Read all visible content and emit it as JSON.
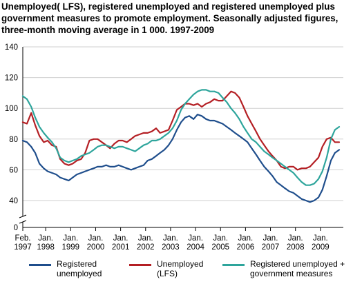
{
  "title_line1": "Unemployed( LFS), registered unemployed and registered unemployed plus",
  "title_line2": "government measures to promote employment. Seasonally adjusted figures,",
  "title_line3": "three-month moving average in 1 000. 1997-2009",
  "chart_data": {
    "type": "line",
    "ylim": [
      0,
      140
    ],
    "y_break": [
      0,
      30
    ],
    "yticks": [
      0,
      40,
      60,
      80,
      100,
      120,
      140
    ],
    "xlim": [
      1997.0833,
      2009.9167
    ],
    "xticks": [
      {
        "x": 1997.0833,
        "line1": "Feb.",
        "line2": "1997"
      },
      {
        "x": 1998.0,
        "line1": "Jan.",
        "line2": "1998"
      },
      {
        "x": 1999.0,
        "line1": "Jan.",
        "line2": "1999"
      },
      {
        "x": 2000.0,
        "line1": "Jan.",
        "line2": "2000"
      },
      {
        "x": 2001.0,
        "line1": "Jan.",
        "line2": "2001"
      },
      {
        "x": 2002.0,
        "line1": "Jan.",
        "line2": "2002"
      },
      {
        "x": 2003.0,
        "line1": "Jan.",
        "line2": "2003"
      },
      {
        "x": 2004.0,
        "line1": "Jan.",
        "line2": "2004"
      },
      {
        "x": 2005.0,
        "line1": "Jan.",
        "line2": "2005"
      },
      {
        "x": 2006.0,
        "line1": "Jan.",
        "line2": "2006"
      },
      {
        "x": 2007.0,
        "line1": "Jan.",
        "line2": "2007"
      },
      {
        "x": 2008.0,
        "line1": "Jan.",
        "line2": "2008"
      },
      {
        "x": 2009.0,
        "line1": "Jan.",
        "line2": "2009"
      }
    ],
    "grid": true,
    "legend_position": "bottom",
    "series": [
      {
        "name": "Registered unemployed",
        "color": "#1f4e8c",
        "x": [
          1997.08,
          1997.25,
          1997.42,
          1997.58,
          1997.75,
          1997.92,
          1998.08,
          1998.25,
          1998.42,
          1998.58,
          1998.75,
          1998.92,
          1999.08,
          1999.25,
          1999.42,
          1999.58,
          1999.75,
          1999.92,
          2000.08,
          2000.25,
          2000.42,
          2000.58,
          2000.75,
          2000.92,
          2001.08,
          2001.25,
          2001.42,
          2001.58,
          2001.75,
          2001.92,
          2002.08,
          2002.25,
          2002.42,
          2002.58,
          2002.75,
          2002.92,
          2003.08,
          2003.25,
          2003.42,
          2003.58,
          2003.75,
          2003.92,
          2004.08,
          2004.25,
          2004.42,
          2004.58,
          2004.75,
          2004.92,
          2005.08,
          2005.25,
          2005.42,
          2005.58,
          2005.75,
          2005.92,
          2006.08,
          2006.25,
          2006.42,
          2006.58,
          2006.75,
          2006.92,
          2007.08,
          2007.25,
          2007.42,
          2007.58,
          2007.75,
          2007.92,
          2008.08,
          2008.25,
          2008.42,
          2008.58,
          2008.75,
          2008.92,
          2009.08,
          2009.25,
          2009.42,
          2009.58,
          2009.75
        ],
        "values": [
          79,
          78,
          75,
          71,
          64,
          61,
          59,
          58,
          57,
          55,
          54,
          53,
          55,
          57,
          58,
          59,
          60,
          61,
          62,
          62,
          63,
          62,
          62,
          63,
          62,
          61,
          60,
          61,
          62,
          63,
          66,
          67,
          69,
          71,
          73,
          76,
          80,
          86,
          91,
          94,
          95,
          93,
          96,
          95,
          93,
          92,
          92,
          91,
          90,
          88,
          86,
          84,
          82,
          80,
          78,
          74,
          70,
          66,
          62,
          59,
          56,
          52,
          50,
          48,
          46,
          45,
          43,
          41,
          40,
          39,
          40,
          42,
          47,
          56,
          66,
          71,
          73
        ]
      },
      {
        "name": "Unemployed (LFS)",
        "color": "#b41f24",
        "x": [
          1997.08,
          1997.25,
          1997.42,
          1997.58,
          1997.75,
          1997.92,
          1998.08,
          1998.25,
          1998.42,
          1998.58,
          1998.75,
          1998.92,
          1999.08,
          1999.25,
          1999.42,
          1999.58,
          1999.75,
          1999.92,
          2000.08,
          2000.25,
          2000.42,
          2000.58,
          2000.75,
          2000.92,
          2001.08,
          2001.25,
          2001.42,
          2001.58,
          2001.75,
          2001.92,
          2002.08,
          2002.25,
          2002.42,
          2002.58,
          2002.75,
          2002.92,
          2003.08,
          2003.25,
          2003.42,
          2003.58,
          2003.75,
          2003.92,
          2004.08,
          2004.25,
          2004.42,
          2004.58,
          2004.75,
          2004.92,
          2005.08,
          2005.25,
          2005.42,
          2005.58,
          2005.75,
          2005.92,
          2006.08,
          2006.25,
          2006.42,
          2006.58,
          2006.75,
          2006.92,
          2007.08,
          2007.25,
          2007.42,
          2007.58,
          2007.75,
          2007.92,
          2008.08,
          2008.25,
          2008.42,
          2008.58,
          2008.75,
          2008.92,
          2009.08,
          2009.25,
          2009.42,
          2009.58,
          2009.75
        ],
        "values": [
          91,
          90,
          97,
          89,
          82,
          78,
          79,
          76,
          75,
          67,
          64,
          63,
          64,
          66,
          67,
          71,
          79,
          80,
          80,
          78,
          76,
          74,
          77,
          79,
          79,
          78,
          80,
          82,
          83,
          84,
          84,
          85,
          87,
          84,
          85,
          86,
          92,
          99,
          101,
          103,
          103,
          102,
          103,
          101,
          103,
          104,
          106,
          105,
          105,
          108,
          111,
          110,
          107,
          101,
          95,
          90,
          85,
          80,
          76,
          72,
          69,
          66,
          62,
          61,
          62,
          62,
          60,
          61,
          61,
          62,
          65,
          68,
          75,
          80,
          81,
          78,
          78
        ]
      },
      {
        "name": "Registered unemployed + government measures",
        "color": "#2ea59c",
        "x": [
          1997.08,
          1997.25,
          1997.42,
          1997.58,
          1997.75,
          1997.92,
          1998.08,
          1998.25,
          1998.42,
          1998.58,
          1998.75,
          1998.92,
          1999.08,
          1999.25,
          1999.42,
          1999.58,
          1999.75,
          1999.92,
          2000.08,
          2000.25,
          2000.42,
          2000.58,
          2000.75,
          2000.92,
          2001.08,
          2001.25,
          2001.42,
          2001.58,
          2001.75,
          2001.92,
          2002.08,
          2002.25,
          2002.42,
          2002.58,
          2002.75,
          2002.92,
          2003.08,
          2003.25,
          2003.42,
          2003.58,
          2003.75,
          2003.92,
          2004.08,
          2004.25,
          2004.42,
          2004.58,
          2004.75,
          2004.92,
          2005.08,
          2005.25,
          2005.42,
          2005.58,
          2005.75,
          2005.92,
          2006.08,
          2006.25,
          2006.42,
          2006.58,
          2006.75,
          2006.92,
          2007.08,
          2007.25,
          2007.42,
          2007.58,
          2007.75,
          2007.92,
          2008.08,
          2008.25,
          2008.42,
          2008.58,
          2008.75,
          2008.92,
          2009.08,
          2009.25,
          2009.42,
          2009.58,
          2009.75
        ],
        "values": [
          108,
          106,
          101,
          94,
          88,
          84,
          81,
          78,
          74,
          68,
          66,
          65,
          66,
          67,
          69,
          70,
          71,
          73,
          75,
          76,
          76,
          75,
          74,
          75,
          75,
          74,
          73,
          72,
          74,
          76,
          77,
          79,
          79,
          80,
          82,
          84,
          87,
          92,
          99,
          103,
          106,
          109,
          111,
          112,
          112,
          111,
          111,
          110,
          107,
          104,
          100,
          97,
          93,
          88,
          84,
          80,
          78,
          75,
          72,
          70,
          68,
          66,
          64,
          62,
          60,
          58,
          55,
          52,
          50,
          50,
          51,
          54,
          59,
          68,
          80,
          86,
          88
        ]
      }
    ]
  },
  "legend": [
    {
      "line1": "Registered",
      "line2": "unemployed",
      "color": "#1f4e8c"
    },
    {
      "line1": "Unemployed",
      "line2": "(LFS)",
      "color": "#b41f24"
    },
    {
      "line1": "Registered unemployed +",
      "line2": "government measures",
      "color": "#2ea59c"
    }
  ]
}
